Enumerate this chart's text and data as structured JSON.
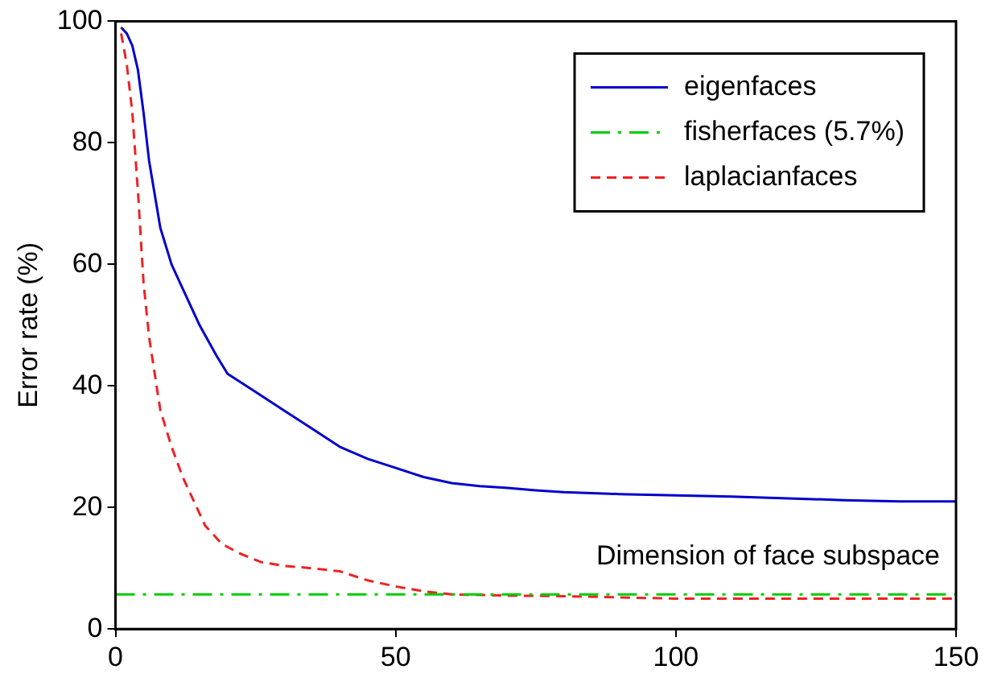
{
  "chart_data": {
    "type": "line",
    "ylabel": "Error rate (%)",
    "xlim": [
      0,
      150
    ],
    "xticks": [
      0,
      50,
      100,
      150
    ],
    "ylim": [
      0,
      100
    ],
    "yticks": [
      0,
      20,
      40,
      60,
      80,
      100
    ],
    "grid": false,
    "legend": "top right",
    "marker": "none",
    "annotations": [
      "Dimension of face subspace"
    ],
    "series": [
      {
        "name": "eigenfaces",
        "color": "#0000cc",
        "line_style": "solid",
        "x": [
          1,
          2,
          3,
          4,
          5,
          6,
          8,
          10,
          12,
          15,
          18,
          20,
          25,
          30,
          35,
          40,
          45,
          50,
          55,
          60,
          65,
          70,
          75,
          80,
          90,
          100,
          110,
          120,
          130,
          140,
          150
        ],
        "values": [
          99,
          98,
          96,
          92,
          85,
          77,
          66,
          60,
          56,
          50,
          45,
          42,
          39,
          36,
          33,
          30,
          28,
          26.5,
          25,
          24,
          23.5,
          23.2,
          22.8,
          22.5,
          22.2,
          22,
          21.8,
          21.5,
          21.2,
          21,
          21
        ]
      },
      {
        "name": "fisherfaces (5.7%)",
        "color": "#00cc00",
        "line_style": "dashdot",
        "x": [
          0,
          150
        ],
        "values": [
          5.7,
          5.7
        ]
      },
      {
        "name": "laplacianfaces",
        "color": "#ee2222",
        "line_style": "dashed",
        "x": [
          1,
          2,
          3,
          4,
          5,
          6,
          7,
          8,
          10,
          12,
          14,
          16,
          19,
          22,
          26,
          30,
          35,
          40,
          45,
          50,
          55,
          60,
          70,
          80,
          90,
          100,
          110,
          120,
          130,
          140,
          150
        ],
        "values": [
          98,
          93,
          85,
          72,
          57,
          48,
          42,
          36,
          30,
          25,
          21,
          17,
          14,
          12.5,
          11,
          10.4,
          10,
          9.5,
          8,
          7,
          6.2,
          5.7,
          5.5,
          5.4,
          5.2,
          5,
          5,
          5,
          5,
          5,
          5
        ]
      }
    ]
  }
}
